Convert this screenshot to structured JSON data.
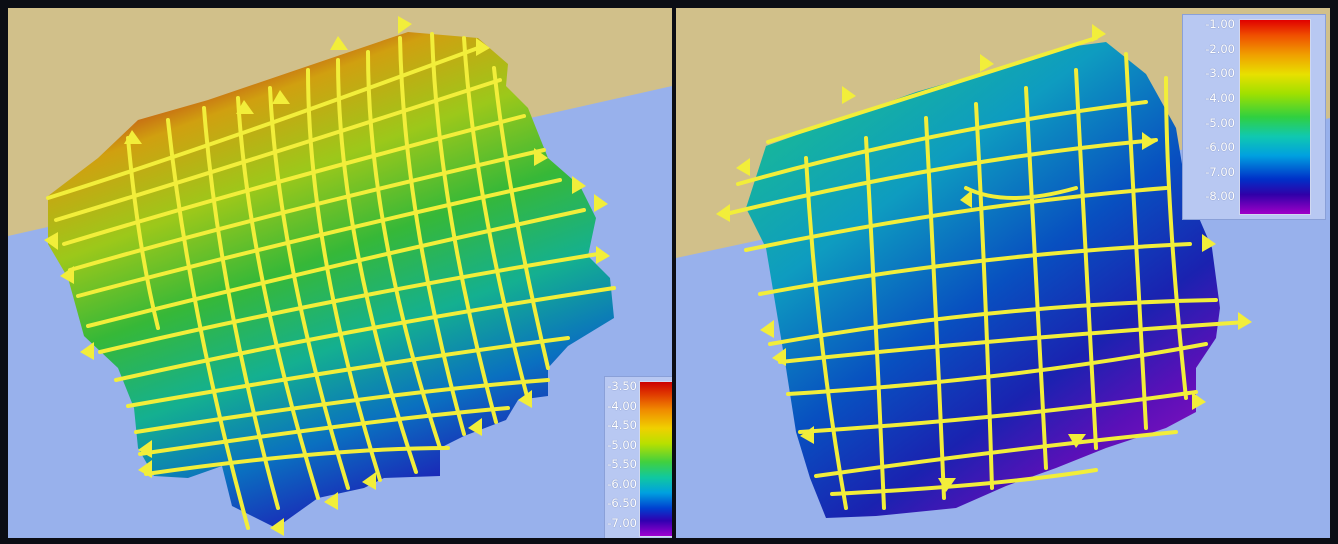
{
  "panels": [
    {
      "id": "left",
      "legend": {
        "ticks": [
          "-3.50",
          "-4.00",
          "-4.50",
          "-5.00",
          "-5.50",
          "-6.00",
          "-6.50",
          "-7.00"
        ]
      }
    },
    {
      "id": "right",
      "legend": {
        "ticks": [
          "-1.00",
          "-2.00",
          "-3.00",
          "-4.00",
          "-5.00",
          "-6.00",
          "-7.00",
          "-8.00"
        ]
      }
    }
  ],
  "colors": {
    "land": "#d1c08a",
    "water": "#98b1ec",
    "track_lines": "#f2ee3a"
  }
}
